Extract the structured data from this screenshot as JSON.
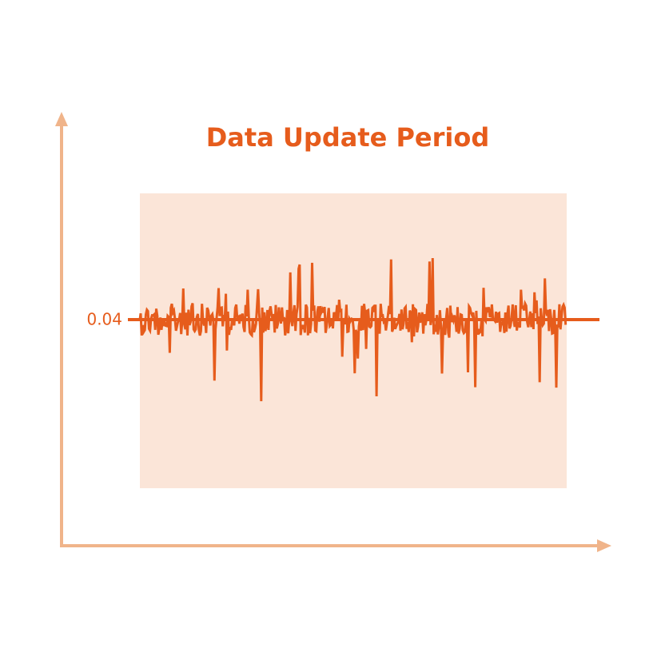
{
  "title": "Data Update Period",
  "level_label": "0.04"
}
